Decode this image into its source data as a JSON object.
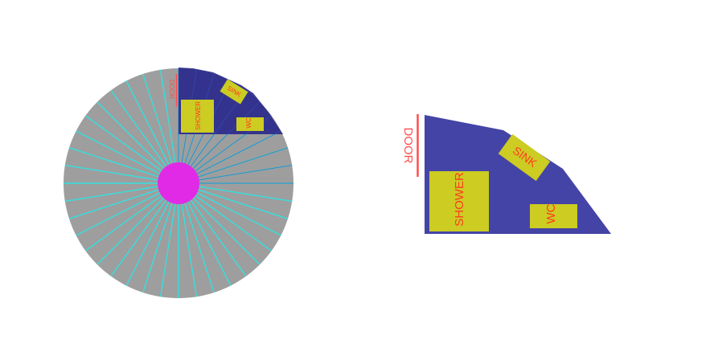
{
  "labels": {
    "door": "DOOR",
    "shower": "SHOWER",
    "sink": "SINK",
    "wc": "WC"
  },
  "colors": {
    "disk": "#9e9e9e",
    "spoke": "#33e0e0",
    "hub": "#e02ae6",
    "room": "#2a2a8c",
    "room_detail": "#4444a6",
    "fixture": "#cccc22",
    "label_text": "#ff3b1f",
    "door": "#ff4d4d"
  },
  "spoke_count": 40
}
